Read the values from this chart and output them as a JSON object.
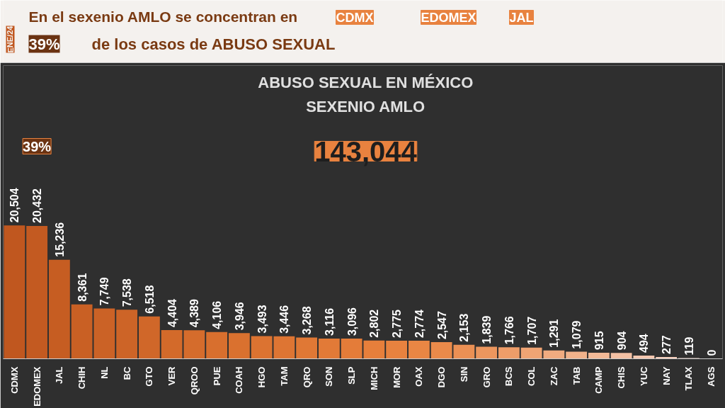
{
  "chart_data": {
    "type": "bar",
    "title": "ABUSO SEXUAL EN MÉXICO",
    "subtitle": "SEXENIO AMLO",
    "categories": [
      "CDMX",
      "EDOMEX",
      "JAL",
      "CHIH",
      "NL",
      "BC",
      "GTO",
      "VER",
      "QROO",
      "PUE",
      "COAH",
      "HGO",
      "TAM",
      "QRO",
      "SON",
      "SLP",
      "MICH",
      "MOR",
      "OAX",
      "DGO",
      "SIN",
      "GRO",
      "BCS",
      "COL",
      "ZAC",
      "TAB",
      "CAMP",
      "CHIS",
      "YUC",
      "NAY",
      "TLAX",
      "AGS"
    ],
    "values": [
      20504,
      20432,
      15236,
      8361,
      7749,
      7538,
      6518,
      4404,
      4389,
      4106,
      3946,
      3493,
      3446,
      3268,
      3116,
      3096,
      2802,
      2775,
      2774,
      2547,
      2153,
      1839,
      1766,
      1707,
      1291,
      1079,
      915,
      904,
      494,
      277,
      119,
      0
    ],
    "colors": [
      "#c0571f",
      "#c35a21",
      "#c65d22",
      "#c96024",
      "#cb6226",
      "#cd6427",
      "#d06729",
      "#d36a2a",
      "#d56c2c",
      "#d86f2e",
      "#da712f",
      "#dc7331",
      "#de7533",
      "#e07835",
      "#e27a37",
      "#e47c39",
      "#e77f3b",
      "#e8823f",
      "#e98644",
      "#ea8a4a",
      "#eb9054",
      "#ec965e",
      "#ee9d69",
      "#efa474",
      "#f0ab80",
      "#f1b28b",
      "#f2b997",
      "#f3c0a3",
      "#f4c7af",
      "#f5cebb",
      "#f6d5c7",
      "#f7dcd3"
    ],
    "value_labels": [
      "20,504",
      "20,432",
      "15,236",
      "8,361",
      "7,749",
      "7,538",
      "6,518",
      "4,404",
      "4,389",
      "4,106",
      "3,946",
      "3,493",
      "3,446",
      "3,268",
      "3,116",
      "3,096",
      "2,802",
      "2,775",
      "2,774",
      "2,547",
      "2,153",
      "1,839",
      "1,766",
      "1,707",
      "1,291",
      "1,079",
      "915",
      "904",
      "494",
      "277",
      "119",
      "0"
    ],
    "annotations": [
      "ENE/24",
      "En el sexenio AMLO se concentran en",
      "CDMX",
      "EDOMEX",
      "JAL",
      "39%",
      "de los casos de ABUSO SEXUAL",
      "143,044",
      "39%"
    ]
  }
}
